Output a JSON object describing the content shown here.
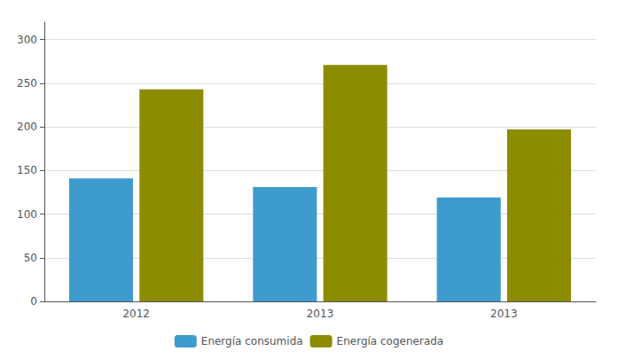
{
  "chart_data": {
    "type": "bar",
    "categories": [
      "2012",
      "2013",
      "2013"
    ],
    "series": [
      {
        "name": "Energía consumida",
        "color": "#3d9bce",
        "values": [
          141,
          131,
          119
        ]
      },
      {
        "name": "Energía cogenerada",
        "color": "#8c8c00",
        "values": [
          243,
          271,
          197
        ]
      }
    ],
    "ylim": [
      0,
      320
    ],
    "yticks": [
      0,
      50,
      100,
      150,
      200,
      250,
      300
    ],
    "grid": true,
    "legend": "bottom"
  }
}
